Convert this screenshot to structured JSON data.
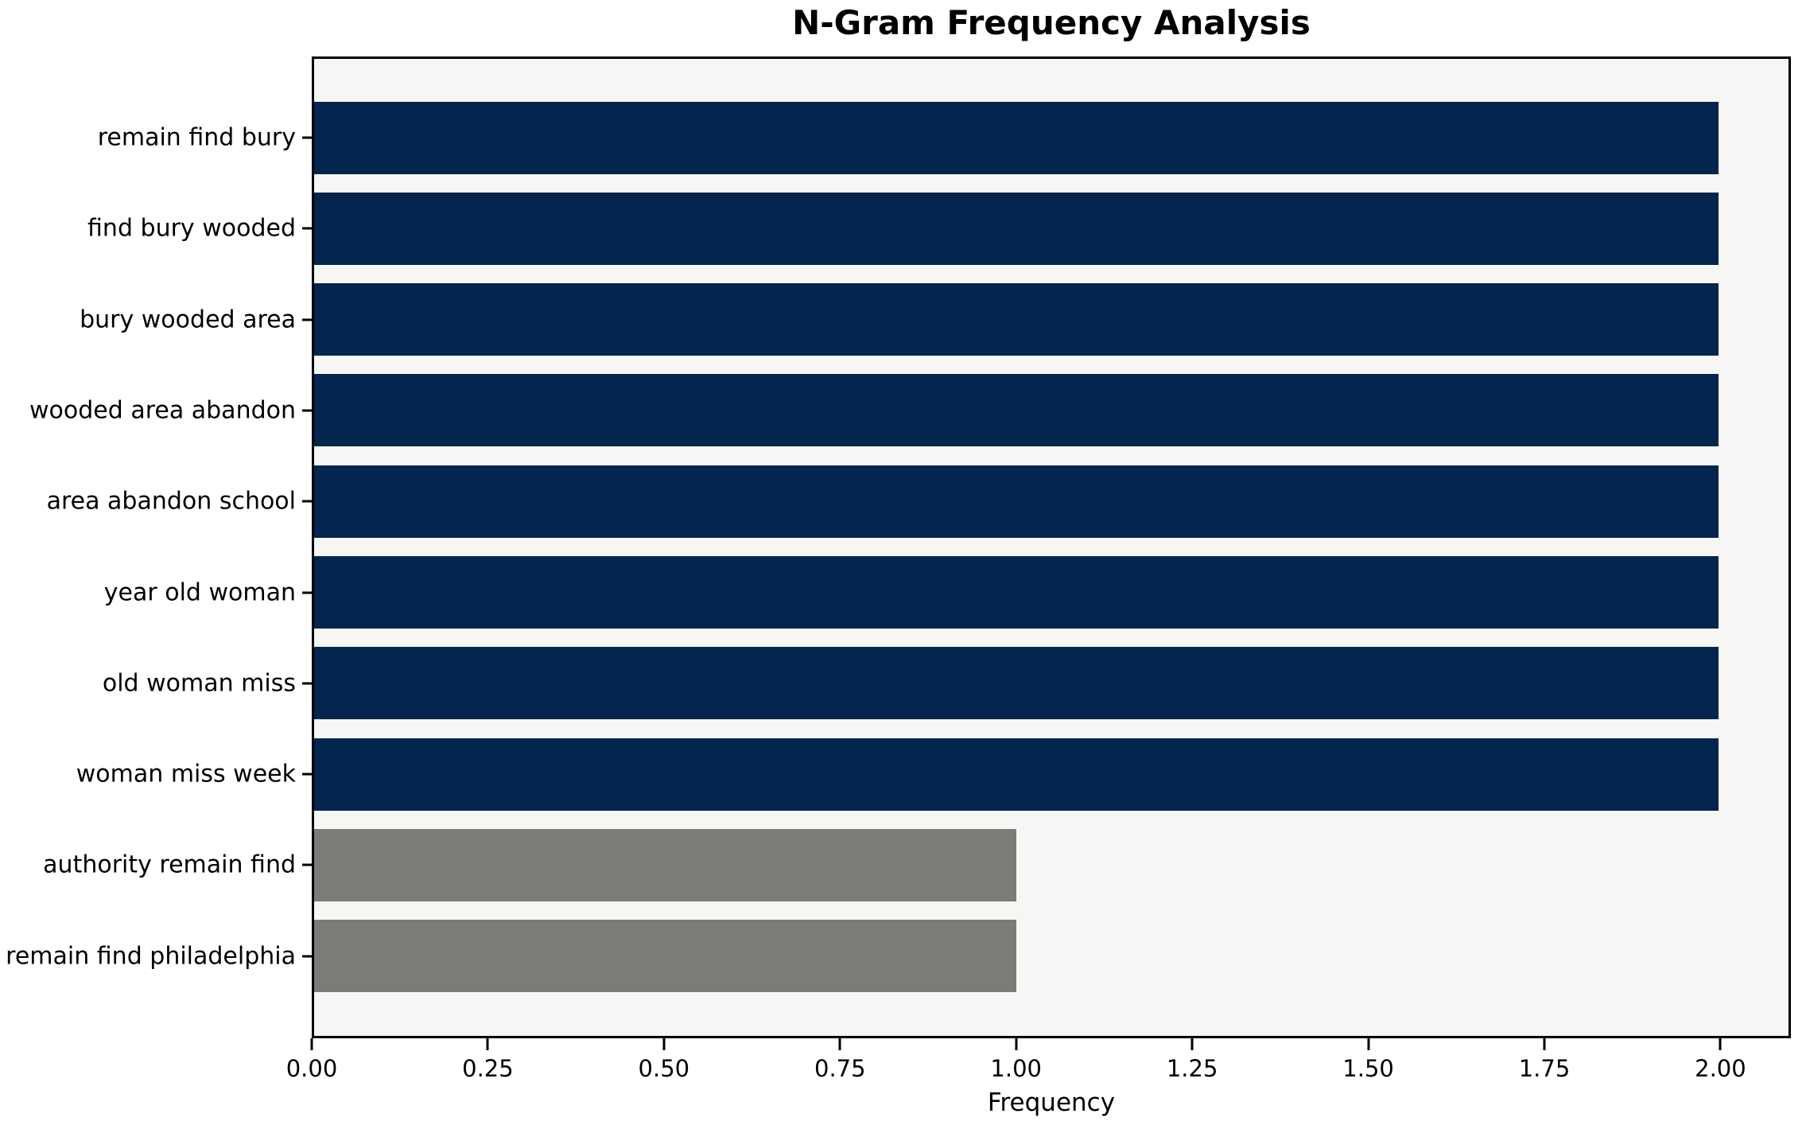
{
  "chart_data": {
    "type": "bar",
    "orientation": "horizontal",
    "title": "N-Gram Frequency Analysis",
    "xlabel": "Frequency",
    "ylabel": "",
    "categories": [
      "remain find bury",
      "find bury wooded",
      "bury wooded area",
      "wooded area abandon",
      "area abandon school",
      "year old woman",
      "old woman miss",
      "woman miss week",
      "authority remain find",
      "remain find philadelphia"
    ],
    "values": [
      2,
      2,
      2,
      2,
      2,
      2,
      2,
      2,
      1,
      1
    ],
    "bar_colors": [
      "#03254e",
      "#03254e",
      "#03254e",
      "#03254e",
      "#03254e",
      "#03254e",
      "#03254e",
      "#03254e",
      "#7b7b78",
      "#7b7b78"
    ],
    "xlim": [
      0,
      2.1
    ],
    "xticks": [
      0,
      0.25,
      0.5,
      0.75,
      1.0,
      1.25,
      1.5,
      1.75,
      2.0
    ],
    "xtick_labels": [
      "0.00",
      "0.25",
      "0.50",
      "0.75",
      "1.00",
      "1.25",
      "1.50",
      "1.75",
      "2.00"
    ],
    "grid": false,
    "legend": null,
    "plot_background": "#f7f6f4",
    "navy_color": "#03254e",
    "gray_color": "#7b7b78"
  }
}
